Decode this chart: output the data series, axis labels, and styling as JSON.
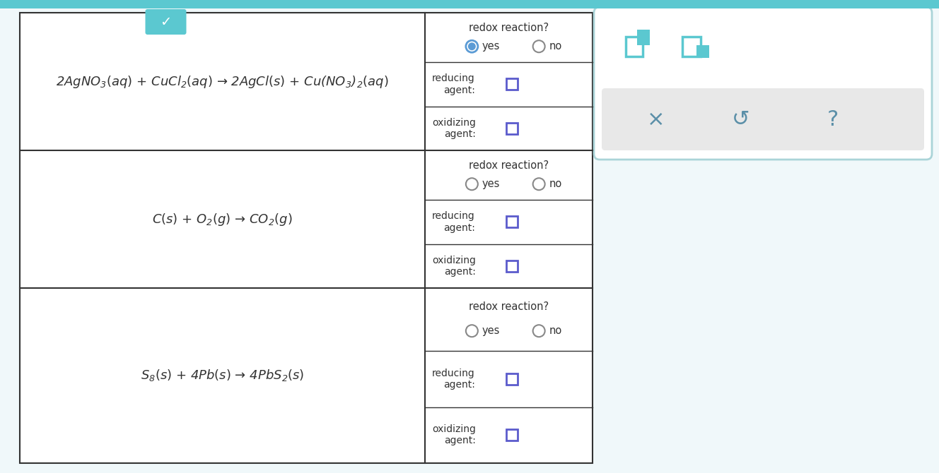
{
  "bg_color": "#f0f8fa",
  "table_bg": "#ffffff",
  "border_color": "#333333",
  "teal_top": "#5bc8d0",
  "teal_border": "#5bc8d0",
  "rows": [
    {
      "equation": "2AgNO$_3$$(aq)$ + CuCl$_2$$(aq)$ → 2AgCl$(s)$ + Cu$\\big($NO$_3\\big)_2$$(aq)$",
      "redox_selected": "yes"
    },
    {
      "equation": "C$(s)$ + O$_2$$(g)$ → CO$_2$$(g)$",
      "redox_selected": "none"
    },
    {
      "equation": "S$_8$$(s)$ + 4Pb$(s)$ → 4PbS$_2$$(s)$",
      "redox_selected": "none"
    }
  ],
  "panel_bg": "#ffffff",
  "panel_border": "#aad4d8",
  "panel_inner_bg": "#e8e8e8",
  "text_color": "#333333",
  "blue_checkbox": "#5b5bcc",
  "radio_circle_color": "#888888",
  "yes_filled_color": "#5b9bd5"
}
